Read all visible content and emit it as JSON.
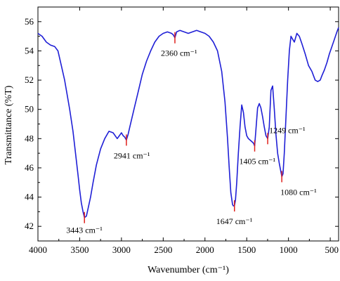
{
  "chart_data": {
    "type": "line",
    "xlabel": "Wavenumber (cm⁻¹)",
    "ylabel": "Transmittance (%T)",
    "xlim": [
      4000,
      400
    ],
    "ylim": [
      41,
      57
    ],
    "x_reversed": true,
    "x_ticks": [
      4000,
      3500,
      3000,
      2500,
      2000,
      1500,
      1000,
      500
    ],
    "y_ticks": [
      42,
      44,
      46,
      48,
      50,
      52,
      54,
      56
    ],
    "grid": false,
    "line_color": "#1f1fd6",
    "marker_color": "#e0201b",
    "series": [
      {
        "x": [
          4000,
          3950,
          3900,
          3850,
          3800,
          3760,
          3720,
          3680,
          3650,
          3620,
          3580,
          3550,
          3520,
          3500,
          3480,
          3460,
          3443,
          3420,
          3400,
          3370,
          3340,
          3300,
          3250,
          3200,
          3150,
          3100,
          3050,
          3000,
          2980,
          2960,
          2941,
          2920,
          2900,
          2850,
          2800,
          2750,
          2700,
          2650,
          2600,
          2550,
          2500,
          2450,
          2400,
          2380,
          2360,
          2340,
          2300,
          2250,
          2200,
          2150,
          2100,
          2050,
          2000,
          1950,
          1900,
          1850,
          1800,
          1760,
          1730,
          1710,
          1690,
          1670,
          1660,
          1647,
          1635,
          1620,
          1600,
          1580,
          1560,
          1540,
          1520,
          1500,
          1480,
          1460,
          1440,
          1420,
          1405,
          1390,
          1370,
          1350,
          1330,
          1310,
          1290,
          1270,
          1249,
          1230,
          1210,
          1190,
          1170,
          1150,
          1130,
          1110,
          1090,
          1080,
          1065,
          1050,
          1030,
          1010,
          990,
          970,
          950,
          930,
          900,
          870,
          840,
          800,
          760,
          720,
          700,
          680,
          650,
          620,
          600,
          570,
          540,
          510,
          480,
          450,
          420,
          400
        ],
        "y": [
          55.2,
          55.0,
          54.6,
          54.4,
          54.3,
          54.0,
          53.0,
          52.0,
          51.0,
          50.0,
          48.5,
          47.0,
          45.5,
          44.5,
          43.6,
          43.0,
          42.6,
          42.7,
          43.2,
          44.0,
          45.0,
          46.2,
          47.3,
          48.0,
          48.5,
          48.4,
          48.0,
          48.4,
          48.2,
          48.1,
          47.9,
          48.3,
          48.8,
          50.0,
          51.2,
          52.4,
          53.3,
          54.0,
          54.6,
          55.0,
          55.2,
          55.3,
          55.2,
          55.1,
          54.9,
          55.3,
          55.4,
          55.3,
          55.2,
          55.3,
          55.4,
          55.3,
          55.2,
          55.0,
          54.6,
          54.0,
          52.6,
          50.5,
          48.0,
          46.0,
          44.3,
          43.5,
          43.4,
          43.4,
          43.8,
          45.0,
          47.0,
          48.8,
          50.3,
          49.8,
          48.8,
          48.2,
          48.0,
          47.9,
          47.8,
          47.7,
          47.5,
          48.6,
          50.1,
          50.4,
          50.1,
          49.5,
          48.8,
          48.2,
          48.0,
          48.8,
          51.3,
          51.6,
          50.0,
          48.3,
          47.0,
          46.3,
          45.7,
          45.4,
          45.6,
          47.0,
          49.5,
          52.0,
          54.0,
          55.0,
          54.8,
          54.6,
          55.2,
          55.0,
          54.5,
          53.8,
          53.0,
          52.6,
          52.3,
          52.0,
          51.9,
          52.0,
          52.3,
          52.7,
          53.2,
          53.8,
          54.3,
          54.8,
          55.3,
          55.6
        ]
      }
    ],
    "annotations": [
      {
        "label": "3443 cm⁻¹",
        "x": 3443,
        "y": 42.6
      },
      {
        "label": "2941 cm⁻¹",
        "x": 2941,
        "y": 47.9
      },
      {
        "label": "2360 cm⁻¹",
        "x": 2360,
        "y": 54.9
      },
      {
        "label": "1647 cm⁻¹",
        "x": 1647,
        "y": 43.4
      },
      {
        "label": "1405 cm⁻¹",
        "x": 1405,
        "y": 47.5
      },
      {
        "label": "1249 cm⁻¹",
        "x": 1249,
        "y": 48.0
      },
      {
        "label": "1080 cm⁻¹",
        "x": 1080,
        "y": 45.4
      }
    ]
  }
}
